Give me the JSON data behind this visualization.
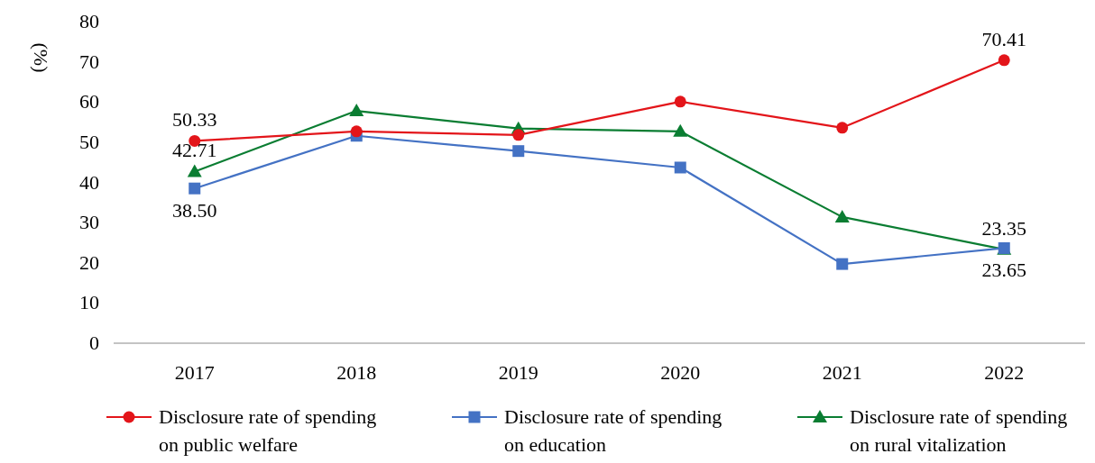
{
  "chart_data": {
    "type": "line",
    "ylabel": "(%)",
    "categories": [
      "2017",
      "2018",
      "2019",
      "2020",
      "2021",
      "2022"
    ],
    "ylim": [
      0,
      80
    ],
    "yticks": [
      0,
      10,
      20,
      30,
      40,
      50,
      60,
      70,
      80
    ],
    "grid": false,
    "legend": "bottom",
    "series": [
      {
        "name": "Disclosure rate of spending on public welfare",
        "color": "#e3151a",
        "marker": "circle",
        "values": [
          50.33,
          52.7,
          51.8,
          60.1,
          53.6,
          70.41
        ],
        "value_labels": [
          "50.33",
          null,
          null,
          null,
          null,
          "70.41"
        ]
      },
      {
        "name": "Disclosure rate of spending on education",
        "color": "#4472c4",
        "marker": "square",
        "values": [
          38.5,
          51.6,
          47.8,
          43.7,
          19.7,
          23.65
        ],
        "value_labels": [
          "38.50",
          null,
          null,
          null,
          null,
          "23.65"
        ]
      },
      {
        "name": "Disclosure rate of spending on rural vitalization",
        "color": "#0a7d32",
        "marker": "triangle",
        "values": [
          42.71,
          57.8,
          53.4,
          52.7,
          31.4,
          23.35
        ],
        "value_labels": [
          "42.71",
          null,
          null,
          null,
          null,
          "23.35"
        ]
      }
    ]
  }
}
